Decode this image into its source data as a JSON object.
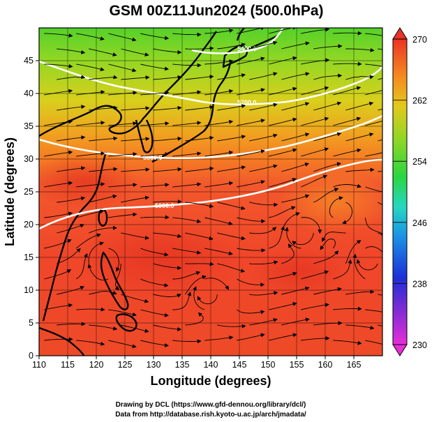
{
  "title": "GSM 00Z11Jun2024 (500.0hPa)",
  "chart_data": {
    "type": "heatmap",
    "xlabel": "Longitude (degrees)",
    "ylabel": "Latitude  (degrees)",
    "xlim": [
      110,
      170
    ],
    "ylim": [
      0,
      50
    ],
    "xticks": [
      110,
      115,
      120,
      125,
      130,
      135,
      140,
      145,
      150,
      155,
      160,
      165
    ],
    "yticks": [
      0,
      5,
      10,
      15,
      20,
      25,
      30,
      35,
      40,
      45
    ],
    "grid": true,
    "colorbar": {
      "ticks": [
        230,
        238,
        246,
        254,
        262,
        270
      ],
      "range": [
        230,
        270
      ]
    },
    "contours": [
      {
        "label": "5400.0"
      },
      {
        "label": "5700.0"
      },
      {
        "label": "5800.0"
      },
      {
        "label": "5900.0"
      }
    ]
  },
  "credits": {
    "line1": "Drawing by DCL (https://www.gfd-dennou.org/library/dcl/)",
    "line2": "Data from http://database.rish.kyoto-u.ac.jp/arch/jmadata/"
  }
}
